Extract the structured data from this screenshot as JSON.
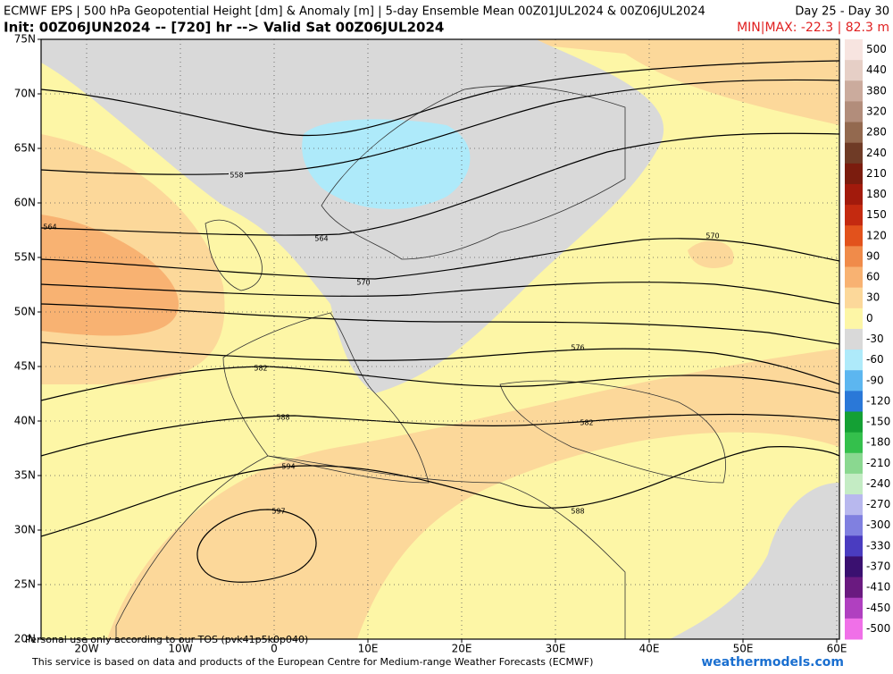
{
  "header": {
    "title": "ECMWF EPS | 500 hPa Geopotential Height [dm] & Anomaly [m] | 5-day Ensemble Mean 00Z01JUL2024 & 00Z06JUL2024",
    "period": "Day 25 - Day 30",
    "init": "Init: 00Z06JUN2024 -- [720] hr --> Valid Sat 00Z06JUL2024",
    "minmax": "MIN|MAX: -22.3 | 82.3 m"
  },
  "map": {
    "latitudes": [
      {
        "value": 75,
        "label": "75N"
      },
      {
        "value": 70,
        "label": "70N"
      },
      {
        "value": 65,
        "label": "65N"
      },
      {
        "value": 60,
        "label": "60N"
      },
      {
        "value": 55,
        "label": "55N"
      },
      {
        "value": 50,
        "label": "50N"
      },
      {
        "value": 45,
        "label": "45N"
      },
      {
        "value": 40,
        "label": "40N"
      },
      {
        "value": 35,
        "label": "35N"
      },
      {
        "value": 30,
        "label": "30N"
      },
      {
        "value": 25,
        "label": "25N"
      },
      {
        "value": 20,
        "label": "20N"
      }
    ],
    "longitudes": [
      {
        "value": -20,
        "label": "20W"
      },
      {
        "value": -10,
        "label": "10W"
      },
      {
        "value": 0,
        "label": "0"
      },
      {
        "value": 10,
        "label": "10E"
      },
      {
        "value": 20,
        "label": "20E"
      },
      {
        "value": 30,
        "label": "30E"
      },
      {
        "value": 40,
        "label": "40E"
      },
      {
        "value": 50,
        "label": "50E"
      },
      {
        "value": 60,
        "label": "60E"
      }
    ],
    "contour_labels": [
      "558",
      "564",
      "570",
      "576",
      "582",
      "588",
      "594",
      "597"
    ]
  },
  "colorbar": [
    {
      "label": "500",
      "color": "#f7e4e0"
    },
    {
      "label": "440",
      "color": "#e6cfc6"
    },
    {
      "label": "380",
      "color": "#cbab9d"
    },
    {
      "label": "320",
      "color": "#b28d7b"
    },
    {
      "label": "280",
      "color": "#93694f"
    },
    {
      "label": "240",
      "color": "#6f3b26"
    },
    {
      "label": "210",
      "color": "#7b1c0e"
    },
    {
      "label": "180",
      "color": "#a21a0c"
    },
    {
      "label": "150",
      "color": "#c42a10"
    },
    {
      "label": "120",
      "color": "#e2521c"
    },
    {
      "label": "90",
      "color": "#f08b4a"
    },
    {
      "label": "60",
      "color": "#f8b272"
    },
    {
      "label": "30",
      "color": "#fcd89a"
    },
    {
      "label": "0",
      "color": "#fdf6a6"
    },
    {
      "label": "-30",
      "color": "#d9d9d9"
    },
    {
      "label": "-60",
      "color": "#aeeafa"
    },
    {
      "label": "-90",
      "color": "#5cb6f0"
    },
    {
      "label": "-120",
      "color": "#2a78d8"
    },
    {
      "label": "-150",
      "color": "#14a034"
    },
    {
      "label": "-180",
      "color": "#34c04c"
    },
    {
      "label": "-210",
      "color": "#8ad890"
    },
    {
      "label": "-240",
      "color": "#c4ecc4"
    },
    {
      "label": "-270",
      "color": "#b8b8ee"
    },
    {
      "label": "-300",
      "color": "#8080e0"
    },
    {
      "label": "-330",
      "color": "#4a3cc0"
    },
    {
      "label": "-370",
      "color": "#3a1070"
    },
    {
      "label": "-410",
      "color": "#6a1a80"
    },
    {
      "label": "-450",
      "color": "#b040c0"
    },
    {
      "label": "-500",
      "color": "#f070e8"
    }
  ],
  "footer": {
    "tos": "Personal use only according to our TOS (pvk41p5k0p040)",
    "credit": "This service is based on data and products of the European Centre for Medium-range Weather Forecasts (ECMWF)",
    "site": "weathermodels.com"
  }
}
